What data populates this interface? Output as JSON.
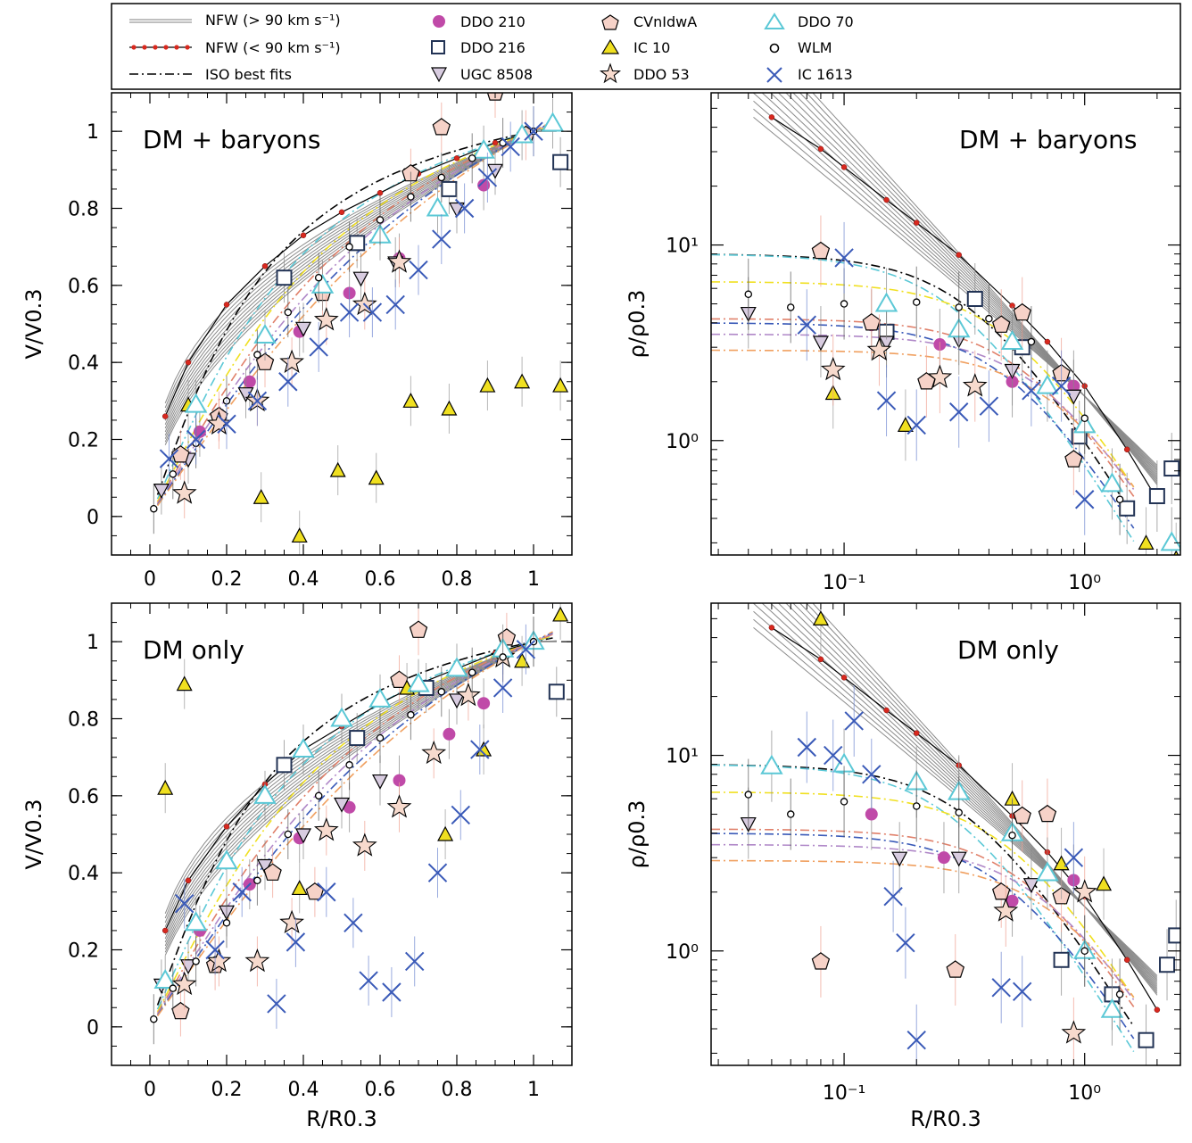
{
  "legend": {
    "entries": [
      {
        "label": "NFW (> 90 km s⁻¹)",
        "style": "nfw-gray-line"
      },
      {
        "label": "NFW (< 90 km s⁻¹)",
        "style": "nfw-red-line"
      },
      {
        "label": "ISO best fits",
        "style": "dash-dot-line"
      },
      {
        "label": "DDO 210",
        "style": "magenta-dot"
      },
      {
        "label": "DDO 216",
        "style": "open-square"
      },
      {
        "label": "UGC 8508",
        "style": "down-triangle"
      },
      {
        "label": "CVnIdwA",
        "style": "pentagon"
      },
      {
        "label": "IC 10",
        "style": "yellow-triangle"
      },
      {
        "label": "DDO 53",
        "style": "star"
      },
      {
        "label": "DDO 70",
        "style": "cyan-triangle"
      },
      {
        "label": "WLM",
        "style": "small-circle"
      },
      {
        "label": "IC 1613",
        "style": "blue-cross"
      }
    ]
  },
  "colors": {
    "ddo210": "#c04aa8",
    "ddo216": "#223355",
    "ugc8508": "#d8cce0",
    "cvnidwa": "#f6d2c8",
    "ic10": "#f0e020",
    "ddo53": "#f7dacd",
    "ddo70": "#5bc8d6",
    "wlm": "#000000",
    "ic1613": "#3a5ab8",
    "nfw_gray": "#8a8a8a",
    "nfw_red": "#d8281e"
  },
  "chart_data": [
    {
      "type": "scatter",
      "panel": "top-left",
      "annotation": "DM + baryons",
      "ylabel": "V/V0.3",
      "xlim": [
        -0.1,
        1.1
      ],
      "ylim": [
        -0.1,
        1.1
      ],
      "xticks": [
        "0",
        "0.2",
        "0.4",
        "0.6",
        "0.8",
        "1"
      ],
      "yticks": [
        "0",
        "0.2",
        "0.4",
        "0.6",
        "0.8",
        "1"
      ],
      "series": [
        {
          "name": "NFW (< 90 km s⁻¹)",
          "x": [
            0.04,
            0.1,
            0.2,
            0.3,
            0.4,
            0.5,
            0.6,
            0.7,
            0.8,
            0.9,
            1.0
          ],
          "y": [
            0.26,
            0.4,
            0.55,
            0.65,
            0.73,
            0.79,
            0.84,
            0.89,
            0.93,
            0.97,
            1.0
          ]
        },
        {
          "name": "DDO 210",
          "x": [
            0.13,
            0.26,
            0.39,
            0.52,
            0.65,
            0.87
          ],
          "y": [
            0.22,
            0.35,
            0.48,
            0.58,
            0.67,
            0.86
          ]
        },
        {
          "name": "DDO 216",
          "x": [
            0.35,
            0.54,
            0.78,
            1.07
          ],
          "y": [
            0.62,
            0.71,
            0.85,
            0.92
          ]
        },
        {
          "name": "UGC 8508",
          "x": [
            0.03,
            0.1,
            0.25,
            0.4,
            0.55,
            0.64,
            0.8,
            0.9
          ],
          "y": [
            0.07,
            0.15,
            0.32,
            0.49,
            0.62,
            0.66,
            0.8,
            0.9
          ]
        },
        {
          "name": "CVnIdwA",
          "x": [
            0.08,
            0.18,
            0.3,
            0.45,
            0.68,
            0.76,
            0.9,
            0.98
          ],
          "y": [
            0.16,
            0.26,
            0.4,
            0.58,
            0.89,
            1.01,
            1.1,
            0.99
          ]
        },
        {
          "name": "IC 10",
          "x": [
            0.1,
            0.29,
            0.39,
            0.49,
            0.59,
            0.68,
            0.78,
            0.88,
            0.97,
            1.07
          ],
          "y": [
            0.29,
            0.05,
            -0.05,
            0.12,
            0.1,
            0.3,
            0.28,
            0.34,
            0.35,
            0.34
          ]
        },
        {
          "name": "DDO 53",
          "x": [
            0.09,
            0.18,
            0.28,
            0.37,
            0.46,
            0.56,
            0.65
          ],
          "y": [
            0.06,
            0.24,
            0.3,
            0.4,
            0.51,
            0.55,
            0.66
          ]
        },
        {
          "name": "DDO 70",
          "x": [
            0.12,
            0.3,
            0.45,
            0.6,
            0.75,
            0.87,
            0.97,
            1.05
          ],
          "y": [
            0.29,
            0.47,
            0.6,
            0.73,
            0.8,
            0.95,
            0.99,
            1.02
          ]
        },
        {
          "name": "WLM",
          "x": [
            0.01,
            0.06,
            0.12,
            0.2,
            0.28,
            0.36,
            0.44,
            0.52,
            0.6,
            0.68,
            0.76,
            0.84,
            0.92,
            1.0
          ],
          "y": [
            0.02,
            0.11,
            0.19,
            0.3,
            0.42,
            0.53,
            0.62,
            0.7,
            0.77,
            0.83,
            0.88,
            0.93,
            0.97,
            1.0
          ]
        },
        {
          "name": "IC 1613",
          "x": [
            0.05,
            0.12,
            0.2,
            0.28,
            0.36,
            0.44,
            0.52,
            0.58,
            0.64,
            0.7,
            0.76,
            0.82,
            0.88,
            0.94,
            1.0
          ],
          "y": [
            0.15,
            0.2,
            0.24,
            0.3,
            0.35,
            0.44,
            0.53,
            0.53,
            0.55,
            0.64,
            0.72,
            0.8,
            0.88,
            0.96,
            1.0
          ]
        }
      ]
    },
    {
      "type": "scatter",
      "panel": "top-right",
      "annotation": "DM + baryons",
      "ylabel": "ρ/ρ0.3",
      "xscale": "log",
      "yscale": "log",
      "xlim": [
        0.028,
        2.5
      ],
      "ylim": [
        0.26,
        60
      ],
      "xticks": [
        "10⁻¹",
        "10⁰"
      ],
      "yticks": [
        "10⁰",
        "10¹"
      ],
      "series": [
        {
          "name": "NFW (< 90 km s⁻¹)",
          "x": [
            0.05,
            0.08,
            0.1,
            0.15,
            0.2,
            0.3,
            0.5,
            0.7,
            1.0,
            1.5,
            2.0
          ],
          "y": [
            45,
            31,
            25,
            17,
            13,
            8.9,
            4.9,
            3.2,
            1.9,
            0.9,
            0.5
          ]
        },
        {
          "name": "DDO 210",
          "x": [
            0.13,
            0.25,
            0.5,
            0.9
          ],
          "y": [
            3.9,
            3.1,
            2.0,
            1.9
          ]
        },
        {
          "name": "DDO 216",
          "x": [
            0.15,
            0.35,
            0.55,
            0.95,
            1.5,
            2.0,
            2.3
          ],
          "y": [
            3.6,
            5.3,
            3.0,
            1.05,
            0.45,
            0.52,
            0.72
          ]
        },
        {
          "name": "UGC 8508",
          "x": [
            0.04,
            0.08,
            0.15,
            0.3,
            0.5,
            0.9
          ],
          "y": [
            4.5,
            3.2,
            3.2,
            3.3,
            2.3,
            1.7
          ]
        },
        {
          "name": "CVnIdwA",
          "x": [
            0.08,
            0.13,
            0.22,
            0.45,
            0.55,
            0.8,
            0.9
          ],
          "y": [
            9.3,
            4.0,
            2.0,
            3.9,
            4.5,
            2.2,
            0.8
          ]
        },
        {
          "name": "IC 10",
          "x": [
            0.09,
            0.18,
            1.8,
            2.4
          ],
          "y": [
            1.75,
            1.2,
            0.3,
            0.25
          ]
        },
        {
          "name": "DDO 53",
          "x": [
            0.09,
            0.14,
            0.25,
            0.35
          ],
          "y": [
            2.3,
            2.9,
            2.1,
            1.9
          ]
        },
        {
          "name": "DDO 70",
          "x": [
            0.15,
            0.3,
            0.5,
            0.7,
            1.0,
            1.3,
            2.3
          ],
          "y": [
            5.0,
            3.7,
            3.2,
            1.9,
            1.2,
            0.6,
            0.3
          ]
        },
        {
          "name": "WLM",
          "x": [
            0.04,
            0.06,
            0.1,
            0.2,
            0.3,
            0.4,
            0.6,
            1.0,
            1.4
          ],
          "y": [
            5.6,
            4.8,
            5.0,
            5.1,
            4.8,
            4.2,
            3.2,
            1.3,
            0.5
          ]
        },
        {
          "name": "IC 1613",
          "x": [
            0.07,
            0.1,
            0.15,
            0.2,
            0.3,
            0.4,
            0.6,
            0.8,
            1.0
          ],
          "y": [
            3.9,
            8.6,
            1.6,
            1.2,
            1.4,
            1.5,
            1.8,
            1.9,
            0.5
          ]
        }
      ]
    },
    {
      "type": "scatter",
      "panel": "bottom-left",
      "annotation": "DM only",
      "xlabel": "R/R0.3",
      "ylabel": "V/V0.3",
      "xlim": [
        -0.1,
        1.1
      ],
      "ylim": [
        -0.1,
        1.1
      ],
      "xticks": [
        "0",
        "0.2",
        "0.4",
        "0.6",
        "0.8",
        "1"
      ],
      "yticks": [
        "0",
        "0.2",
        "0.4",
        "0.6",
        "0.8",
        "1"
      ],
      "series": [
        {
          "name": "NFW (< 90 km s⁻¹)",
          "x": [
            0.04,
            0.1,
            0.2,
            0.3,
            0.4,
            0.5,
            0.6,
            0.7,
            0.8,
            0.9,
            1.0
          ],
          "y": [
            0.25,
            0.38,
            0.52,
            0.63,
            0.72,
            0.78,
            0.84,
            0.89,
            0.93,
            0.97,
            1.0
          ]
        },
        {
          "name": "DDO 210",
          "x": [
            0.13,
            0.26,
            0.39,
            0.52,
            0.65,
            0.78,
            0.87
          ],
          "y": [
            0.25,
            0.37,
            0.49,
            0.57,
            0.64,
            0.76,
            0.84
          ]
        },
        {
          "name": "DDO 216",
          "x": [
            0.35,
            0.54,
            0.72,
            1.06
          ],
          "y": [
            0.68,
            0.75,
            0.88,
            0.87
          ]
        },
        {
          "name": "UGC 8508",
          "x": [
            0.03,
            0.1,
            0.2,
            0.3,
            0.4,
            0.5,
            0.6,
            0.8
          ],
          "y": [
            0.11,
            0.16,
            0.3,
            0.42,
            0.5,
            0.58,
            0.64,
            0.85
          ]
        },
        {
          "name": "CVnIdwA",
          "x": [
            0.08,
            0.17,
            0.32,
            0.43,
            0.65,
            0.7,
            0.93
          ],
          "y": [
            0.04,
            0.16,
            0.4,
            0.35,
            0.9,
            1.03,
            1.01
          ]
        },
        {
          "name": "IC 10",
          "x": [
            0.04,
            0.09,
            0.39,
            0.67,
            0.77,
            0.87,
            0.97,
            1.07
          ],
          "y": [
            0.62,
            0.89,
            0.36,
            0.88,
            0.5,
            0.72,
            0.95,
            1.07
          ]
        },
        {
          "name": "DDO 53",
          "x": [
            0.09,
            0.18,
            0.28,
            0.37,
            0.46,
            0.56,
            0.65,
            0.74,
            0.83,
            0.92
          ],
          "y": [
            0.11,
            0.17,
            0.17,
            0.27,
            0.51,
            0.47,
            0.57,
            0.71,
            0.86,
            0.96
          ]
        },
        {
          "name": "DDO 70",
          "x": [
            0.04,
            0.12,
            0.2,
            0.3,
            0.4,
            0.5,
            0.6,
            0.7,
            0.8,
            0.92,
            1.0
          ],
          "y": [
            0.12,
            0.27,
            0.43,
            0.6,
            0.72,
            0.8,
            0.85,
            0.89,
            0.93,
            0.98,
            1.0
          ]
        },
        {
          "name": "WLM",
          "x": [
            0.01,
            0.06,
            0.12,
            0.2,
            0.28,
            0.36,
            0.44,
            0.52,
            0.6,
            0.68,
            0.76,
            0.84,
            0.92,
            1.0
          ],
          "y": [
            0.02,
            0.1,
            0.17,
            0.27,
            0.38,
            0.5,
            0.6,
            0.68,
            0.75,
            0.81,
            0.87,
            0.92,
            0.96,
            1.0
          ]
        },
        {
          "name": "IC 1613",
          "x": [
            0.09,
            0.17,
            0.24,
            0.33,
            0.38,
            0.46,
            0.53,
            0.57,
            0.63,
            0.69,
            0.75,
            0.81,
            0.86,
            0.92,
            0.98
          ],
          "y": [
            0.32,
            0.2,
            0.35,
            0.06,
            0.22,
            0.35,
            0.27,
            0.12,
            0.09,
            0.17,
            0.4,
            0.55,
            0.72,
            0.88,
            0.98
          ]
        }
      ]
    },
    {
      "type": "scatter",
      "panel": "bottom-right",
      "annotation": "DM only",
      "xlabel": "R/R0.3",
      "ylabel": "ρ/ρ0.3",
      "xscale": "log",
      "yscale": "log",
      "xlim": [
        0.028,
        2.5
      ],
      "ylim": [
        0.26,
        60
      ],
      "xticks": [
        "10⁻¹",
        "10⁰"
      ],
      "yticks": [
        "10⁰",
        "10¹"
      ],
      "series": [
        {
          "name": "NFW (< 90 km s⁻¹)",
          "x": [
            0.05,
            0.08,
            0.1,
            0.15,
            0.2,
            0.3,
            0.5,
            0.7,
            1.0,
            1.5,
            2.0
          ],
          "y": [
            45,
            31,
            25,
            17,
            13,
            8.9,
            4.9,
            3.2,
            1.9,
            0.9,
            0.5
          ]
        },
        {
          "name": "DDO 210",
          "x": [
            0.13,
            0.26,
            0.5,
            0.9
          ],
          "y": [
            5.0,
            3.0,
            1.8,
            2.3
          ]
        },
        {
          "name": "DDO 216",
          "x": [
            0.8,
            1.3,
            1.8,
            2.2,
            2.4
          ],
          "y": [
            0.9,
            0.6,
            0.35,
            0.85,
            1.2
          ]
        },
        {
          "name": "UGC 8508",
          "x": [
            0.04,
            0.17,
            0.3,
            0.6
          ],
          "y": [
            4.5,
            3.0,
            3.0,
            2.2
          ]
        },
        {
          "name": "CVnIdwA",
          "x": [
            0.08,
            0.29,
            0.45,
            0.55,
            0.7,
            0.8
          ],
          "y": [
            0.88,
            0.8,
            2.0,
            4.9,
            5.0,
            1.9
          ]
        },
        {
          "name": "IC 10",
          "x": [
            0.08,
            0.3,
            0.5,
            0.8,
            1.2
          ],
          "y": [
            50,
            6.6,
            6.0,
            2.8,
            2.2
          ]
        },
        {
          "name": "DDO 53",
          "x": [
            0.47,
            0.9,
            1.0
          ],
          "y": [
            1.6,
            0.38,
            2.0
          ]
        },
        {
          "name": "DDO 70",
          "x": [
            0.05,
            0.1,
            0.2,
            0.3,
            0.5,
            0.7,
            1.0,
            1.3
          ],
          "y": [
            8.8,
            9.0,
            7.3,
            6.5,
            4.0,
            2.5,
            1.0,
            0.5
          ]
        },
        {
          "name": "WLM",
          "x": [
            0.04,
            0.06,
            0.1,
            0.2,
            0.3,
            0.5,
            1.0,
            1.4
          ],
          "y": [
            6.3,
            5.0,
            5.8,
            5.5,
            5.1,
            3.9,
            1.0,
            0.6
          ]
        },
        {
          "name": "IC 1613",
          "x": [
            0.07,
            0.09,
            0.11,
            0.13,
            0.16,
            0.18,
            0.2,
            0.45,
            0.55,
            0.9
          ],
          "y": [
            11.0,
            10.0,
            15.0,
            8.0,
            1.9,
            1.1,
            0.35,
            0.65,
            0.62,
            3.0
          ]
        }
      ]
    }
  ]
}
